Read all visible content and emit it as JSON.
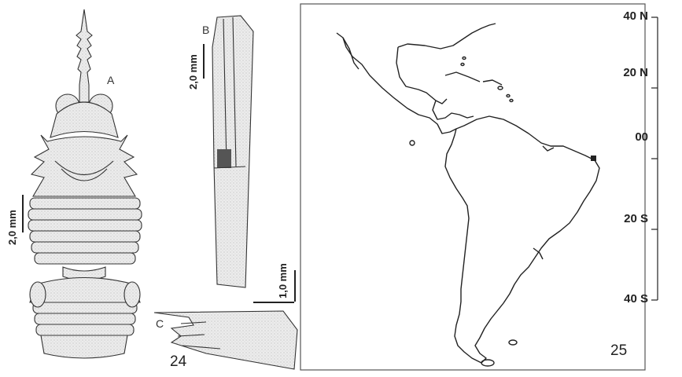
{
  "figure24": {
    "number": "24",
    "panel_a": "A",
    "panel_b": "B",
    "panel_c": "C",
    "scale_a": "2,0 mm",
    "scale_b": "2,0 mm",
    "scale_c": "1,0 mm"
  },
  "figure25": {
    "number": "25",
    "latitudes": [
      "40 N",
      "20 N",
      "00",
      "20 S",
      "40 S"
    ],
    "marker": "square"
  },
  "colors": {
    "ink": "#222222",
    "stipple": "#d8d8d8",
    "frame": "#555555"
  }
}
